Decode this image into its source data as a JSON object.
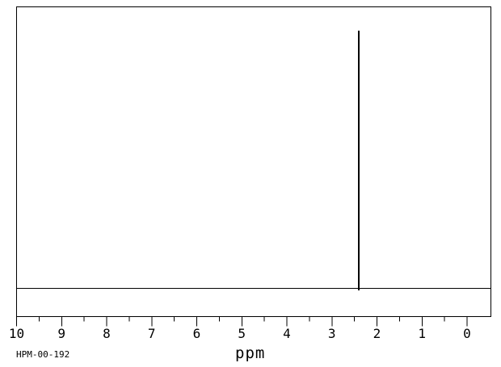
{
  "window": {
    "background_color": "#ffffff",
    "line_color": "#000000"
  },
  "chart_data": {
    "type": "line",
    "subtype": "nmr-spectrum",
    "title": "",
    "xlabel": "ppm",
    "ylabel": "",
    "x_axis": {
      "direction": "reversed",
      "major_ticks": [
        10,
        9,
        8,
        7,
        6,
        5,
        4,
        3,
        2,
        1,
        0
      ],
      "tick_labels": [
        "10",
        "9",
        "8",
        "7",
        "6",
        "5",
        "4",
        "3",
        "2",
        "1",
        "0"
      ],
      "minor_tick_interval": 0.5,
      "displayed_range": [
        10,
        -0.53
      ],
      "grid": false
    },
    "baseline": {
      "intensity": 0,
      "flat": true
    },
    "peaks": [
      {
        "ppm": 2.4,
        "relative_intensity": 0.915
      }
    ],
    "legend": null,
    "annotations": {
      "sample_id": "HPM-00-192"
    }
  }
}
